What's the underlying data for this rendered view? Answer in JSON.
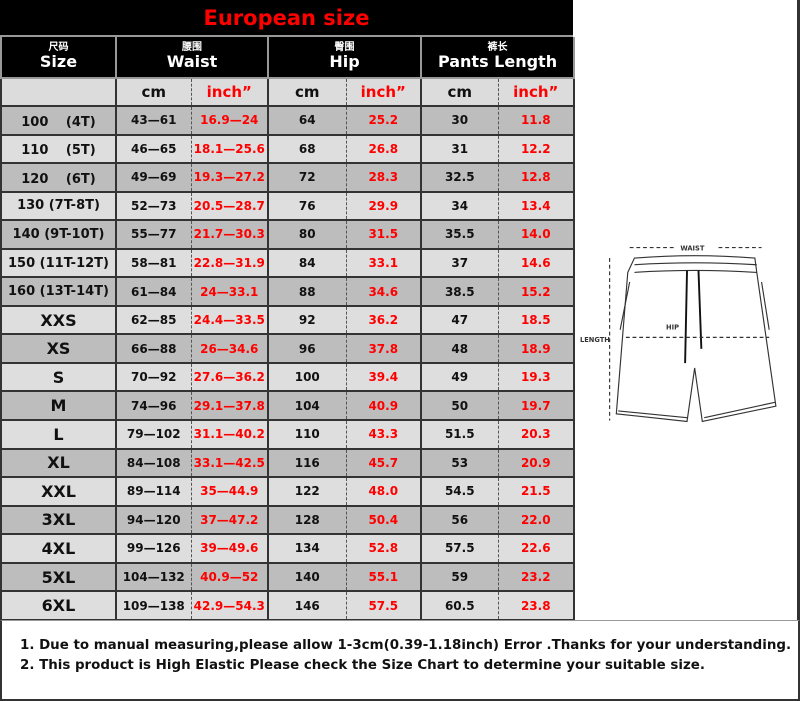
{
  "title": "European size",
  "headers": [
    {
      "cn": "尺码",
      "en": "Size"
    },
    {
      "cn": "腰围",
      "en": "Waist"
    },
    {
      "cn": "臀围",
      "en": "Hip"
    },
    {
      "cn": "裤长",
      "en": "Pants Length"
    }
  ],
  "units": {
    "cm": "cm",
    "inch": "inch”"
  },
  "rows": [
    {
      "size": "100 　(4T)",
      "waist_cm": "43—61",
      "waist_in": "16.9—24",
      "hip_cm": "64",
      "hip_in": "25.2",
      "len_cm": "30",
      "len_in": "11.8"
    },
    {
      "size": "110 　(5T)",
      "waist_cm": "46—65",
      "waist_in": "18.1—25.6",
      "hip_cm": "68",
      "hip_in": "26.8",
      "len_cm": "31",
      "len_in": "12.2"
    },
    {
      "size": "120 　(6T)",
      "waist_cm": "49—69",
      "waist_in": "19.3—27.2",
      "hip_cm": "72",
      "hip_in": "28.3",
      "len_cm": "32.5",
      "len_in": "12.8"
    },
    {
      "size": "130 (7T-8T)",
      "waist_cm": "52—73",
      "waist_in": "20.5—28.7",
      "hip_cm": "76",
      "hip_in": "29.9",
      "len_cm": "34",
      "len_in": "13.4"
    },
    {
      "size": "140 (9T-10T)",
      "waist_cm": "55—77",
      "waist_in": "21.7—30.3",
      "hip_cm": "80",
      "hip_in": "31.5",
      "len_cm": "35.5",
      "len_in": "14.0"
    },
    {
      "size": "150 (11T-12T)",
      "waist_cm": "58—81",
      "waist_in": "22.8—31.9",
      "hip_cm": "84",
      "hip_in": "33.1",
      "len_cm": "37",
      "len_in": "14.6"
    },
    {
      "size": "160 (13T-14T)",
      "waist_cm": "61—84",
      "waist_in": "24—33.1",
      "hip_cm": "88",
      "hip_in": "34.6",
      "len_cm": "38.5",
      "len_in": "15.2"
    },
    {
      "size": "XXS",
      "waist_cm": "62—85",
      "waist_in": "24.4—33.5",
      "hip_cm": "92",
      "hip_in": "36.2",
      "len_cm": "47",
      "len_in": "18.5"
    },
    {
      "size": "XS",
      "waist_cm": "66—88",
      "waist_in": "26—34.6",
      "hip_cm": "96",
      "hip_in": "37.8",
      "len_cm": "48",
      "len_in": "18.9"
    },
    {
      "size": "S",
      "waist_cm": "70—92",
      "waist_in": "27.6—36.2",
      "hip_cm": "100",
      "hip_in": "39.4",
      "len_cm": "49",
      "len_in": "19.3"
    },
    {
      "size": "M",
      "waist_cm": "74—96",
      "waist_in": "29.1—37.8",
      "hip_cm": "104",
      "hip_in": "40.9",
      "len_cm": "50",
      "len_in": "19.7"
    },
    {
      "size": "L",
      "waist_cm": "79—102",
      "waist_in": "31.1—40.2",
      "hip_cm": "110",
      "hip_in": "43.3",
      "len_cm": "51.5",
      "len_in": "20.3"
    },
    {
      "size": "XL",
      "waist_cm": "84—108",
      "waist_in": "33.1—42.5",
      "hip_cm": "116",
      "hip_in": "45.7",
      "len_cm": "53",
      "len_in": "20.9"
    },
    {
      "size": "XXL",
      "waist_cm": "89—114",
      "waist_in": "35—44.9",
      "hip_cm": "122",
      "hip_in": "48.0",
      "len_cm": "54.5",
      "len_in": "21.5"
    },
    {
      "size": "3XL",
      "waist_cm": "94—120",
      "waist_in": "37—47.2",
      "hip_cm": "128",
      "hip_in": "50.4",
      "len_cm": "56",
      "len_in": "22.0"
    },
    {
      "size": "4XL",
      "waist_cm": "99—126",
      "waist_in": "39—49.6",
      "hip_cm": "134",
      "hip_in": "52.8",
      "len_cm": "57.5",
      "len_in": "22.6"
    },
    {
      "size": "5XL",
      "waist_cm": "104—132",
      "waist_in": "40.9—52",
      "hip_cm": "140",
      "hip_in": "55.1",
      "len_cm": "59",
      "len_in": "23.2"
    },
    {
      "size": "6XL",
      "waist_cm": "109—138",
      "waist_in": "42.9—54.3",
      "hip_cm": "146",
      "hip_in": "57.5",
      "len_cm": "60.5",
      "len_in": "23.8"
    }
  ],
  "diagram": {
    "waist": "WAIST",
    "hip": "HIP",
    "length": "LENGTH"
  },
  "notes": [
    "1. Due to manual measuring,please allow 1-3cm(0.39-1.18inch) Error .Thanks for your understanding.",
    "2. This product is High Elastic Please check the Size Chart to determine your suitable size."
  ],
  "colors": {
    "accent_red": "#ff0000",
    "header_bg": "#000000",
    "row_dark": "#bdbdbd",
    "row_light": "#dedede"
  }
}
